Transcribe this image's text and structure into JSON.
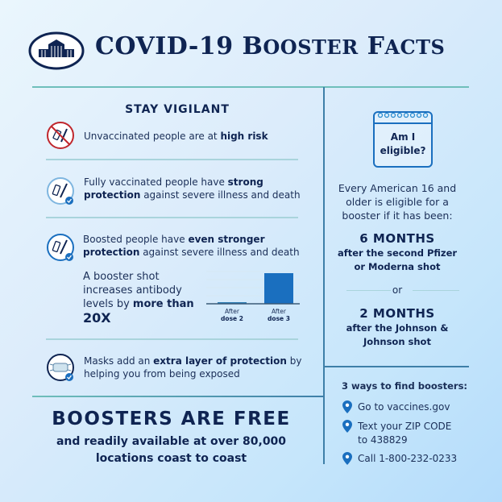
{
  "header": {
    "title_first": "COVID-19",
    "title_b": "B",
    "title_ooster": "OOSTER",
    "title_f": "F",
    "title_acts": "ACTS",
    "logo": "white-house-seal-icon"
  },
  "left": {
    "heading": "STAY VIGILANT",
    "rows": [
      {
        "icon": "no-vaccine-icon",
        "pre": "Unvaccinated people are at ",
        "bold": "high risk",
        "post": ""
      },
      {
        "icon": "vaccine-check-icon",
        "pre": "Fully vaccinated people have ",
        "bold": "strong",
        "line2_bold": "protection",
        "line2": " against severe illness and death"
      },
      {
        "icon": "vaccine-check-icon",
        "pre": "Boosted people have ",
        "bold": "even stronger",
        "line2_bold": "protection",
        "line2": " against severe illness and death"
      },
      {
        "icon": "mask-check-icon",
        "pre": "Masks add an ",
        "bold": "extra layer of protection",
        "post": " by",
        "line2": "helping you from being exposed"
      }
    ],
    "booster": {
      "l1": "A booster shot",
      "l2": "increases antibody",
      "l3": "levels by ",
      "l3_bold": "more than",
      "l4": "20X"
    },
    "footer": {
      "headline": "BOOSTERS ARE FREE",
      "l1": "and readily available at over 80,000",
      "l2": "locations coast to coast"
    }
  },
  "chart_data": {
    "type": "bar",
    "categories": [
      {
        "top": "After",
        "bottom": "dose 2"
      },
      {
        "top": "After",
        "bottom": "dose 3"
      }
    ],
    "values": [
      1,
      20
    ],
    "colors": [
      "#2f7fb5",
      "#1a6fbf"
    ]
  },
  "right": {
    "calendar": {
      "l1": "Am I",
      "l2": "eligible?"
    },
    "intro": [
      "Every American 16 and",
      "older is eligible for a",
      "booster if it has been:"
    ],
    "opt1": {
      "head": "6 MONTHS",
      "l1": "after the second Pfizer",
      "l2": "or Moderna shot"
    },
    "or": "or",
    "opt2": {
      "head": "2 MONTHS",
      "l1": "after the Johnson &",
      "l2": "Johnson shot"
    },
    "ways": {
      "heading": "3 ways to find boosters:",
      "items": [
        [
          "Go to vaccines.gov"
        ],
        [
          "Text your ZIP CODE",
          "to 438829"
        ],
        [
          "Call 1-800-232-0233"
        ]
      ]
    }
  },
  "colors": {
    "navy": "#0f2452",
    "teal": "#6fbfbb",
    "blue": "#1a6fbf",
    "red": "#c0272d"
  }
}
